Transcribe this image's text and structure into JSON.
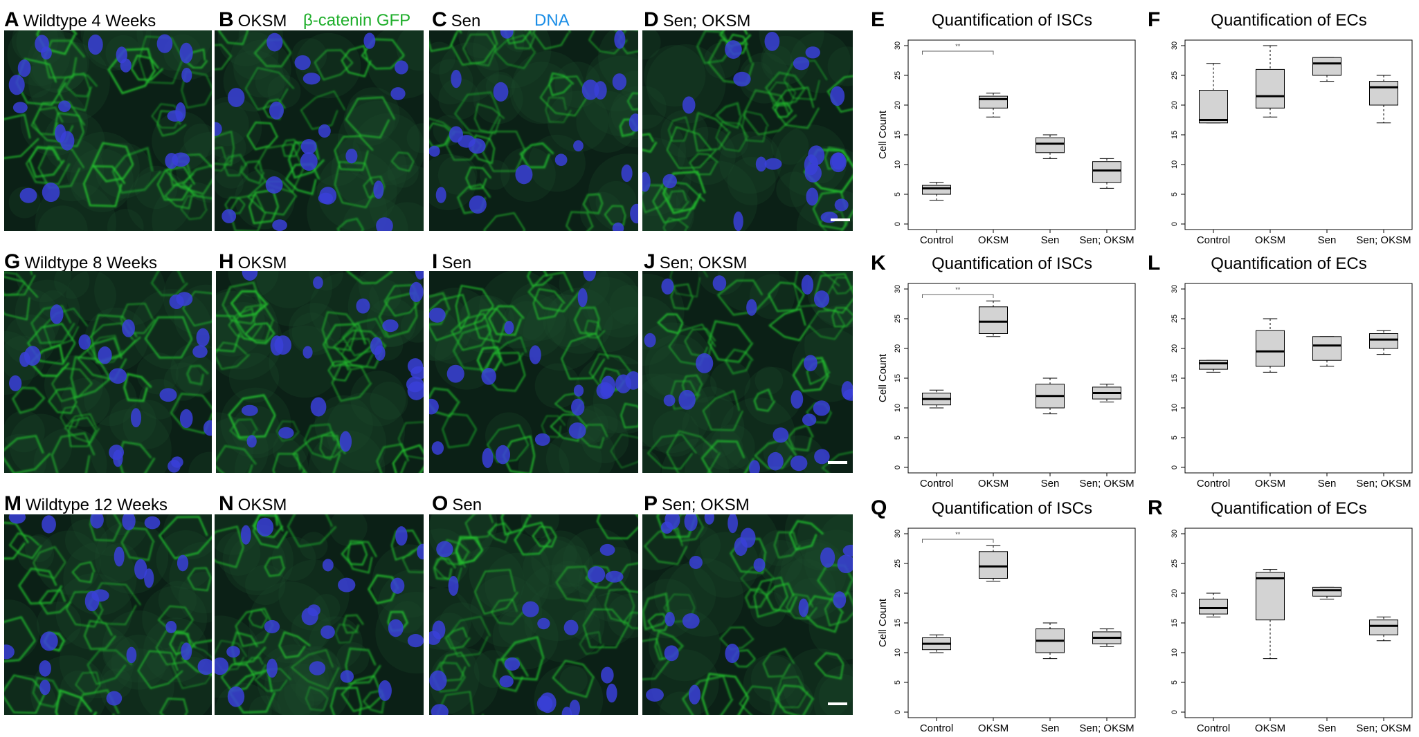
{
  "legend": {
    "green": "β-catenin GFP",
    "blue": "DNA"
  },
  "colors": {
    "membrane": "#22c02e",
    "nuclei": "#3a3fd8",
    "box_fill": "#d3d3d3",
    "legend_green": "#1fae2b",
    "legend_blue": "#1a8de6"
  },
  "panels": [
    {
      "letter": "A",
      "caption": "Wildtype 4 Weeks"
    },
    {
      "letter": "B",
      "caption": "OKSM"
    },
    {
      "letter": "C",
      "caption": "Sen"
    },
    {
      "letter": "D",
      "caption": "Sen; OKSM"
    },
    {
      "letter": "G",
      "caption": "Wildtype 8 Weeks"
    },
    {
      "letter": "H",
      "caption": "OKSM"
    },
    {
      "letter": "I",
      "caption": "Sen"
    },
    {
      "letter": "J",
      "caption": "Sen; OKSM"
    },
    {
      "letter": "M",
      "caption": "Wildtype 12 Weeks"
    },
    {
      "letter": "N",
      "caption": "OKSM"
    },
    {
      "letter": "O",
      "caption": "Sen"
    },
    {
      "letter": "P",
      "caption": "Sen; OKSM"
    }
  ],
  "chart_data": [
    {
      "letter": "E",
      "type": "box",
      "title": "Quantification of ISCs",
      "ylabel": "Cell Count",
      "ylim": [
        0,
        30
      ],
      "yticks": [
        0,
        5,
        10,
        15,
        20,
        25,
        30
      ],
      "categories": [
        "Control",
        "OKSM",
        "Sen",
        "Sen; OKSM"
      ],
      "boxes": [
        {
          "min": 4,
          "q1": 5,
          "median": 6,
          "q3": 6.5,
          "max": 7
        },
        {
          "min": 18,
          "q1": 19.5,
          "median": 21,
          "q3": 21.5,
          "max": 22
        },
        {
          "min": 11,
          "q1": 12,
          "median": 13.5,
          "q3": 14.5,
          "max": 15
        },
        {
          "min": 6,
          "q1": 7,
          "median": 9,
          "q3": 10.5,
          "max": 11
        }
      ],
      "significance": {
        "label": "**",
        "from": 0,
        "to": 1
      }
    },
    {
      "letter": "F",
      "type": "box",
      "title": "Quantification of ECs",
      "ylabel": "",
      "ylim": [
        0,
        30
      ],
      "yticks": [
        0,
        5,
        10,
        15,
        20,
        25,
        30
      ],
      "categories": [
        "Control",
        "OKSM",
        "Sen",
        "Sen; OKSM"
      ],
      "boxes": [
        {
          "min": 17,
          "q1": 17,
          "median": 17.5,
          "q3": 22.5,
          "max": 27
        },
        {
          "min": 18,
          "q1": 19.5,
          "median": 21.5,
          "q3": 26,
          "max": 30
        },
        {
          "min": 24,
          "q1": 25,
          "median": 27,
          "q3": 28,
          "max": 28
        },
        {
          "min": 17,
          "q1": 20,
          "median": 23,
          "q3": 24,
          "max": 25
        }
      ]
    },
    {
      "letter": "K",
      "type": "box",
      "title": "Quantification of ISCs",
      "ylabel": "Cell Count",
      "ylim": [
        0,
        30
      ],
      "yticks": [
        0,
        5,
        10,
        15,
        20,
        25,
        30
      ],
      "categories": [
        "Control",
        "OKSM",
        "Sen",
        "Sen; OKSM"
      ],
      "boxes": [
        {
          "min": 10,
          "q1": 10.5,
          "median": 11.5,
          "q3": 12.5,
          "max": 13
        },
        {
          "min": 22,
          "q1": 22.5,
          "median": 24.5,
          "q3": 27,
          "max": 28
        },
        {
          "min": 9,
          "q1": 10,
          "median": 12,
          "q3": 14,
          "max": 15
        },
        {
          "min": 11,
          "q1": 11.5,
          "median": 12.5,
          "q3": 13.5,
          "max": 14
        }
      ],
      "significance": {
        "label": "**",
        "from": 0,
        "to": 1
      }
    },
    {
      "letter": "L",
      "type": "box",
      "title": "Quantification of ECs",
      "ylabel": "",
      "ylim": [
        0,
        30
      ],
      "yticks": [
        0,
        5,
        10,
        15,
        20,
        25,
        30
      ],
      "categories": [
        "Control",
        "OKSM",
        "Sen",
        "Sen; OKSM"
      ],
      "boxes": [
        {
          "min": 16,
          "q1": 16.5,
          "median": 17.5,
          "q3": 18,
          "max": 18
        },
        {
          "min": 16,
          "q1": 17,
          "median": 19.5,
          "q3": 23,
          "max": 25
        },
        {
          "min": 17,
          "q1": 18,
          "median": 20.5,
          "q3": 22,
          "max": 22
        },
        {
          "min": 19,
          "q1": 20,
          "median": 21.5,
          "q3": 22.5,
          "max": 23
        }
      ]
    },
    {
      "letter": "Q",
      "type": "box",
      "title": "Quantification of ISCs",
      "ylabel": "Cell Count",
      "ylim": [
        0,
        30
      ],
      "yticks": [
        0,
        5,
        10,
        15,
        20,
        25,
        30
      ],
      "categories": [
        "Control",
        "OKSM",
        "Sen",
        "Sen; OKSM"
      ],
      "boxes": [
        {
          "min": 10,
          "q1": 10.5,
          "median": 11.5,
          "q3": 12.5,
          "max": 13
        },
        {
          "min": 22,
          "q1": 22.5,
          "median": 24.5,
          "q3": 27,
          "max": 28
        },
        {
          "min": 9,
          "q1": 10,
          "median": 12,
          "q3": 14,
          "max": 15
        },
        {
          "min": 11,
          "q1": 11.5,
          "median": 12.5,
          "q3": 13.5,
          "max": 14
        }
      ],
      "significance": {
        "label": "**",
        "from": 0,
        "to": 1
      }
    },
    {
      "letter": "R",
      "type": "box",
      "title": "Quantification of ECs",
      "ylabel": "",
      "ylim": [
        0,
        30
      ],
      "yticks": [
        0,
        5,
        10,
        15,
        20,
        25,
        30
      ],
      "categories": [
        "Control",
        "OKSM",
        "Sen",
        "Sen; OKSM"
      ],
      "boxes": [
        {
          "min": 16,
          "q1": 16.5,
          "median": 17.5,
          "q3": 19,
          "max": 20
        },
        {
          "min": 9,
          "q1": 15.5,
          "median": 22.5,
          "q3": 23.5,
          "max": 24
        },
        {
          "min": 19,
          "q1": 19.5,
          "median": 20.5,
          "q3": 21,
          "max": 21
        },
        {
          "min": 12,
          "q1": 13,
          "median": 14.5,
          "q3": 15.5,
          "max": 16
        }
      ]
    }
  ]
}
